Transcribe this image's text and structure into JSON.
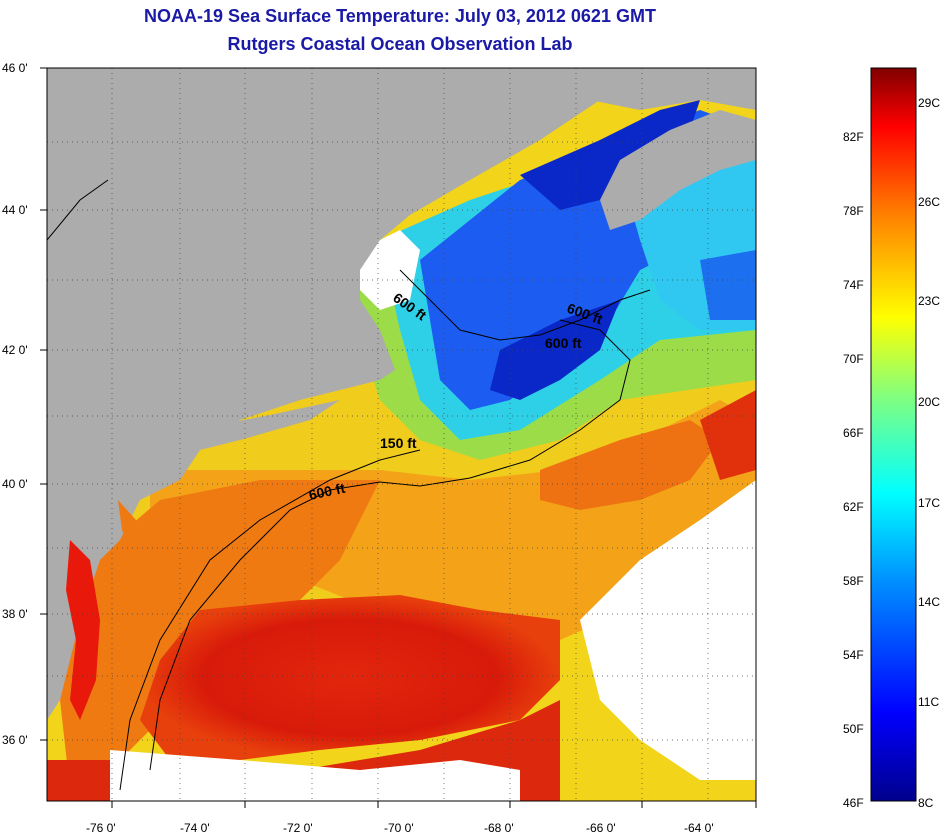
{
  "header": {
    "title": "NOAA-19 Sea Surface Temperature:  July 03, 2012 0621 GMT",
    "subtitle": "Rutgers Coastal Ocean Observation Lab"
  },
  "map": {
    "lat_labels": [
      "46 0'",
      "44 0'",
      "42 0'",
      "40 0'",
      "38 0'",
      "36 0'"
    ],
    "lon_labels": [
      "-76 0'",
      "-74 0'",
      "-72 0'",
      "-70 0'",
      "-68 0'",
      "-66 0'",
      "-64 0'"
    ],
    "contour_labels": [
      "600 ft",
      "600 ft",
      "600 ft",
      "150 ft",
      "600 ft"
    ],
    "colors": {
      "land": "#acacac",
      "warm": "#d81a0a",
      "warm_orange": "#f07a12",
      "yellow": "#f2d41a",
      "green": "#9bdc48",
      "cyan": "#2ed0e8",
      "blue": "#1c5cf0",
      "deep_blue": "#0a28c8",
      "cloud": "#ffffff"
    }
  },
  "colorbar": {
    "fahrenheit_labels": [
      "82F",
      "78F",
      "74F",
      "70F",
      "66F",
      "62F",
      "58F",
      "54F",
      "50F",
      "46F"
    ],
    "celsius_labels": [
      "29C",
      "26C",
      "23C",
      "20C",
      "17C",
      "14C",
      "11C",
      "8C"
    ]
  }
}
